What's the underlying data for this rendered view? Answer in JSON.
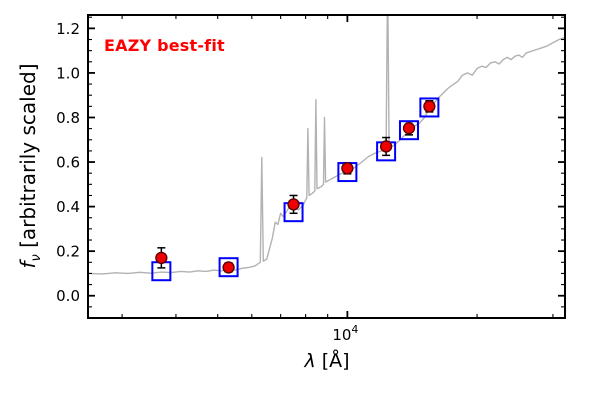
{
  "figure": {
    "annotation": {
      "text": "EAZY best-fit",
      "color": "#ff0000"
    },
    "background": "#ffffff",
    "frame_color": "#000000"
  },
  "chart_data": {
    "type": "line+scatter",
    "title": "",
    "xlabel_lambda": "λ",
    "xlabel_rest": " [Å]",
    "ylabel_f": "f",
    "ylabel_sub": "ν",
    "ylabel_rest": " [arbitrarily scaled]",
    "x_scale": "log",
    "xlim": [
      2500,
      32000
    ],
    "ylim": [
      -0.1,
      1.26
    ],
    "grid": false,
    "legend": "none",
    "x_major_ticks": [
      {
        "v": 10000,
        "label_base": "10",
        "label_exp": "4"
      }
    ],
    "x_minor_ticks": [
      3000,
      4000,
      5000,
      6000,
      7000,
      8000,
      9000,
      20000,
      30000
    ],
    "y_major_ticks": [
      {
        "v": 0.0,
        "label": "0.0"
      },
      {
        "v": 0.2,
        "label": "0.2"
      },
      {
        "v": 0.4,
        "label": "0.4"
      },
      {
        "v": 0.6,
        "label": "0.6"
      },
      {
        "v": 0.8,
        "label": "0.8"
      },
      {
        "v": 1.0,
        "label": "1.0"
      },
      {
        "v": 1.2,
        "label": "1.2"
      }
    ],
    "y_minor_step": 0.05,
    "series": [
      {
        "name": "eazy-bestfit-model-spectrum",
        "type": "line",
        "color": "#b2b2b2",
        "points": [
          [
            2500,
            0.1
          ],
          [
            2700,
            0.098
          ],
          [
            2900,
            0.103
          ],
          [
            3100,
            0.1
          ],
          [
            3300,
            0.105
          ],
          [
            3500,
            0.101
          ],
          [
            3700,
            0.106
          ],
          [
            3900,
            0.104
          ],
          [
            4100,
            0.109
          ],
          [
            4300,
            0.106
          ],
          [
            4500,
            0.112
          ],
          [
            4700,
            0.109
          ],
          [
            4900,
            0.115
          ],
          [
            5100,
            0.112
          ],
          [
            5300,
            0.118
          ],
          [
            5500,
            0.116
          ],
          [
            5700,
            0.123
          ],
          [
            5900,
            0.127
          ],
          [
            6100,
            0.134
          ],
          [
            6280,
            0.15
          ],
          [
            6330,
            0.62
          ],
          [
            6380,
            0.155
          ],
          [
            6500,
            0.165
          ],
          [
            6700,
            0.26
          ],
          [
            6800,
            0.33
          ],
          [
            6900,
            0.32
          ],
          [
            7000,
            0.37
          ],
          [
            7100,
            0.355
          ],
          [
            7300,
            0.392
          ],
          [
            7500,
            0.4
          ],
          [
            7700,
            0.385
          ],
          [
            7900,
            0.408
          ],
          [
            8050,
            0.44
          ],
          [
            8100,
            0.75
          ],
          [
            8150,
            0.45
          ],
          [
            8300,
            0.46
          ],
          [
            8400,
            0.47
          ],
          [
            8450,
            0.88
          ],
          [
            8500,
            0.48
          ],
          [
            8700,
            0.49
          ],
          [
            8800,
            0.5
          ],
          [
            8850,
            0.8
          ],
          [
            8900,
            0.51
          ],
          [
            9100,
            0.52
          ],
          [
            9300,
            0.53
          ],
          [
            9600,
            0.545
          ],
          [
            10000,
            0.56
          ],
          [
            10400,
            0.575
          ],
          [
            10800,
            0.6
          ],
          [
            11200,
            0.625
          ],
          [
            11600,
            0.64
          ],
          [
            12000,
            0.65
          ],
          [
            12300,
            0.655
          ],
          [
            12400,
            1.45
          ],
          [
            12500,
            0.66
          ],
          [
            12800,
            0.675
          ],
          [
            13100,
            0.69
          ],
          [
            13500,
            0.715
          ],
          [
            13900,
            0.74
          ],
          [
            14300,
            0.76
          ],
          [
            14700,
            0.775
          ],
          [
            15100,
            0.8
          ],
          [
            15500,
            0.84
          ],
          [
            15900,
            0.865
          ],
          [
            16300,
            0.89
          ],
          [
            16700,
            0.91
          ],
          [
            17100,
            0.93
          ],
          [
            17500,
            0.945
          ],
          [
            18000,
            0.96
          ],
          [
            18500,
            0.99
          ],
          [
            19000,
            1.0
          ],
          [
            19500,
            0.99
          ],
          [
            20000,
            1.02
          ],
          [
            20500,
            1.03
          ],
          [
            21000,
            1.025
          ],
          [
            21500,
            1.045
          ],
          [
            22000,
            1.05
          ],
          [
            22500,
            1.04
          ],
          [
            23000,
            1.06
          ],
          [
            23500,
            1.07
          ],
          [
            24000,
            1.06
          ],
          [
            24500,
            1.075
          ],
          [
            25000,
            1.08
          ],
          [
            25500,
            1.07
          ],
          [
            26000,
            1.09
          ],
          [
            26500,
            1.095
          ],
          [
            27000,
            1.1
          ],
          [
            27500,
            1.105
          ],
          [
            28000,
            1.11
          ],
          [
            29000,
            1.12
          ],
          [
            30000,
            1.135
          ],
          [
            31000,
            1.15
          ],
          [
            32000,
            1.16
          ]
        ]
      },
      {
        "name": "model-photometry",
        "type": "scatter-open-square",
        "color": "#0000ff",
        "marker_size": 18,
        "x": [
          3700,
          5300,
          7500,
          10000,
          12300,
          13900,
          15500
        ],
        "y": [
          0.11,
          0.128,
          0.375,
          0.555,
          0.648,
          0.743,
          0.845
        ]
      },
      {
        "name": "observed-photometry",
        "type": "scatter-filled-circle",
        "color": "#ee0000",
        "edge_color": "#550000",
        "errorbar_color": "#000000",
        "marker_radius": 5.5,
        "x": [
          3700,
          5300,
          7500,
          10000,
          12300,
          13900,
          15500
        ],
        "y": [
          0.17,
          0.127,
          0.41,
          0.572,
          0.67,
          0.752,
          0.85
        ],
        "yerr": [
          0.045,
          0.02,
          0.04,
          0.025,
          0.04,
          0.03,
          0.025
        ]
      }
    ]
  }
}
